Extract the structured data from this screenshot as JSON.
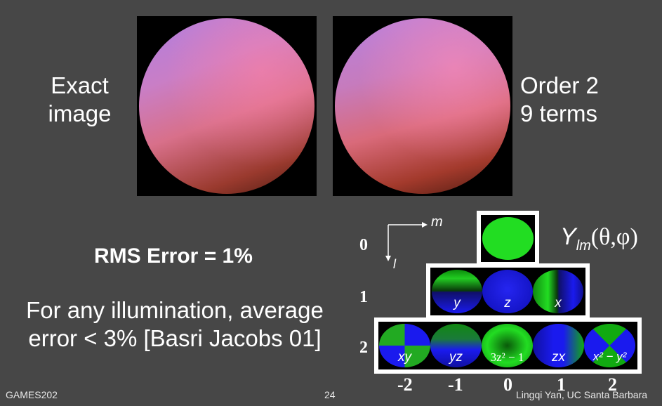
{
  "left_label": [
    "Exact",
    "image"
  ],
  "right_label": [
    "Order 2",
    "9 terms"
  ],
  "rms_error": "RMS Error = 1%",
  "note": [
    "For any illumination, average",
    "error < 3% [Basri Jacobs 01]"
  ],
  "axes": {
    "m": "m",
    "l": "l"
  },
  "formula": {
    "Y": "Y",
    "sub": "lm",
    "args": "(θ,φ)"
  },
  "rows": [
    {
      "l": "0",
      "terms": []
    },
    {
      "l": "1",
      "terms": [
        "y",
        "z",
        "x"
      ]
    },
    {
      "l": "2",
      "terms": [
        "xy",
        "yz",
        "3z² − 1",
        "zx",
        "x² − y²"
      ]
    }
  ],
  "m_values": [
    "-2",
    "-1",
    "0",
    "1",
    "2"
  ],
  "footer": {
    "left": "GAMES202",
    "page": "24",
    "right": "Lingqi Yan, UC Santa Barbara"
  },
  "colors": {
    "background": "#474747",
    "green": "#22dd22",
    "blue": "#1a1aee"
  }
}
